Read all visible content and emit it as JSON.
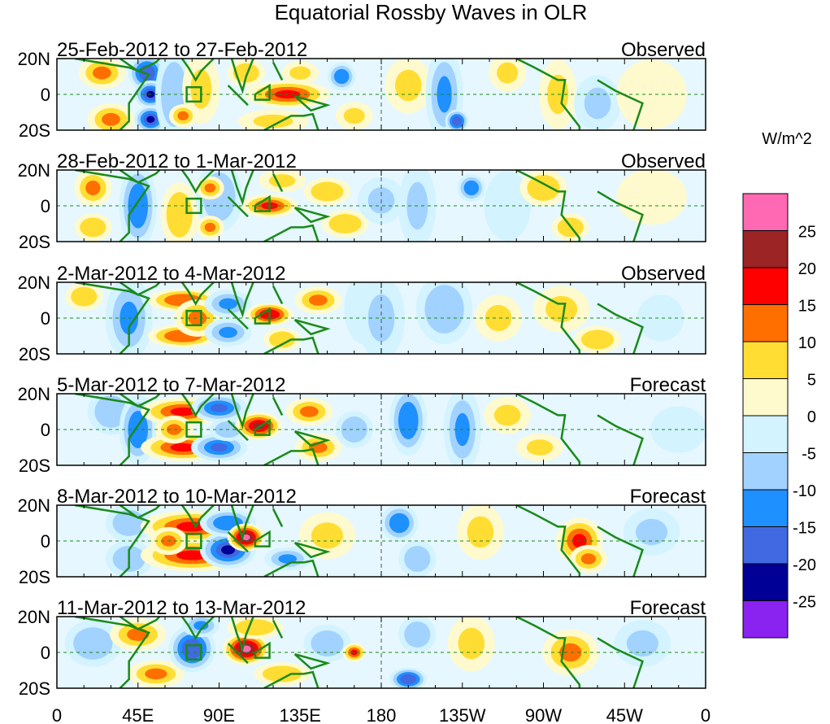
{
  "chart_data": {
    "type": "heatmap",
    "title": "Equatorial Rossby Waves in OLR",
    "units_label": "W/m^2",
    "x_ticks": [
      "0",
      "45E",
      "90E",
      "135E",
      "180",
      "135W",
      "90W",
      "45W",
      "0"
    ],
    "x_tick_values": [
      0,
      45,
      90,
      135,
      180,
      225,
      270,
      315,
      360
    ],
    "y_ticks": [
      "20N",
      "0",
      "20S"
    ],
    "y_tick_values": [
      20,
      0,
      -20
    ],
    "xlim": [
      0,
      360
    ],
    "ylim": [
      -20,
      20
    ],
    "colorbar": {
      "levels": [
        25,
        20,
        15,
        10,
        5,
        0,
        -5,
        -10,
        -15,
        -20,
        -25
      ],
      "level_labels": [
        "25",
        "20",
        "15",
        "10",
        "5",
        "0",
        "-5",
        "-10",
        "-15",
        "-20",
        "-25"
      ],
      "colors": [
        "#FF69B4",
        "#9C2424",
        "#FF0000",
        "#FF6F00",
        "#FFDD33",
        "#FFFACD",
        "#D2F3FF",
        "#A2D2FF",
        "#1E90FF",
        "#4169E1",
        "#000096",
        "#8A22F0"
      ]
    },
    "panels": [
      {
        "date_range": "25-Feb-2012 to 27-Feb-2012",
        "kind": "Observed",
        "features": [
          [
            25,
            12,
            12,
            10,
            7
          ],
          [
            30,
            -14,
            12,
            10,
            7
          ],
          [
            50,
            12,
            -18,
            8,
            8
          ],
          [
            52,
            0,
            -22,
            7,
            6
          ],
          [
            52,
            -14,
            -22,
            7,
            6
          ],
          [
            65,
            0,
            -8,
            8,
            20
          ],
          [
            80,
            3,
            7,
            8,
            15
          ],
          [
            70,
            -12,
            12,
            6,
            5
          ],
          [
            105,
            12,
            8,
            8,
            6
          ],
          [
            128,
            0,
            17,
            18,
            6
          ],
          [
            135,
            12,
            7,
            8,
            5
          ],
          [
            120,
            -15,
            7,
            15,
            5
          ],
          [
            158,
            10,
            -13,
            6,
            6
          ],
          [
            165,
            -12,
            7,
            8,
            6
          ],
          [
            195,
            5,
            5,
            10,
            12
          ],
          [
            215,
            0,
            -12,
            8,
            20
          ],
          [
            222,
            -15,
            -18,
            5,
            5
          ],
          [
            250,
            12,
            7,
            8,
            8
          ],
          [
            278,
            0,
            7,
            8,
            15
          ],
          [
            300,
            -5,
            -7,
            10,
            12
          ],
          [
            330,
            0,
            3,
            15,
            15
          ]
        ]
      },
      {
        "date_range": "28-Feb-2012 to 1-Mar-2012",
        "kind": "Observed",
        "features": [
          [
            20,
            10,
            10,
            8,
            8
          ],
          [
            20,
            -12,
            8,
            8,
            6
          ],
          [
            45,
            0,
            -13,
            8,
            18
          ],
          [
            68,
            -5,
            8,
            8,
            14
          ],
          [
            90,
            5,
            -8,
            10,
            15
          ],
          [
            85,
            10,
            12,
            6,
            5
          ],
          [
            85,
            -12,
            10,
            6,
            5
          ],
          [
            118,
            0,
            16,
            12,
            5
          ],
          [
            125,
            14,
            7,
            10,
            5
          ],
          [
            150,
            8,
            8,
            10,
            6
          ],
          [
            160,
            -10,
            8,
            10,
            6
          ],
          [
            180,
            3,
            -6,
            10,
            10
          ],
          [
            200,
            0,
            -7,
            8,
            18
          ],
          [
            230,
            10,
            -15,
            6,
            6
          ],
          [
            250,
            0,
            -5,
            10,
            15
          ],
          [
            270,
            10,
            8,
            10,
            8
          ],
          [
            285,
            -12,
            8,
            8,
            6
          ],
          [
            330,
            5,
            3,
            15,
            12
          ]
        ]
      },
      {
        "date_range": "2-Mar-2012 to 4-Mar-2012",
        "kind": "Observed",
        "features": [
          [
            15,
            12,
            8,
            8,
            6
          ],
          [
            40,
            0,
            -12,
            10,
            18
          ],
          [
            70,
            10,
            14,
            15,
            5
          ],
          [
            70,
            -10,
            14,
            15,
            5
          ],
          [
            78,
            0,
            10,
            10,
            8
          ],
          [
            95,
            8,
            -12,
            10,
            6
          ],
          [
            95,
            -8,
            -12,
            10,
            6
          ],
          [
            118,
            2,
            18,
            10,
            5
          ],
          [
            125,
            -12,
            8,
            8,
            5
          ],
          [
            145,
            10,
            10,
            10,
            6
          ],
          [
            170,
            5,
            -5,
            8,
            15
          ],
          [
            180,
            0,
            -7,
            10,
            18
          ],
          [
            215,
            5,
            -8,
            12,
            15
          ],
          [
            245,
            0,
            5,
            10,
            10
          ],
          [
            280,
            5,
            7,
            12,
            10
          ],
          [
            300,
            -12,
            8,
            10,
            6
          ],
          [
            335,
            0,
            -5,
            10,
            10
          ]
        ]
      },
      {
        "date_range": "5-Mar-2012 to 7-Mar-2012",
        "kind": "Forecast",
        "features": [
          [
            30,
            10,
            -10,
            10,
            10
          ],
          [
            45,
            0,
            -15,
            8,
            15
          ],
          [
            70,
            10,
            15,
            18,
            6
          ],
          [
            70,
            -10,
            15,
            18,
            6
          ],
          [
            65,
            0,
            10,
            8,
            6
          ],
          [
            90,
            12,
            -17,
            12,
            6
          ],
          [
            90,
            -10,
            -17,
            12,
            6
          ],
          [
            95,
            0,
            -10,
            8,
            5
          ],
          [
            112,
            2,
            22,
            10,
            6
          ],
          [
            140,
            10,
            10,
            10,
            6
          ],
          [
            145,
            -10,
            10,
            10,
            6
          ],
          [
            165,
            0,
            -8,
            8,
            8
          ],
          [
            195,
            5,
            -15,
            8,
            15
          ],
          [
            225,
            0,
            -12,
            8,
            18
          ],
          [
            250,
            8,
            7,
            10,
            8
          ],
          [
            268,
            -10,
            7,
            10,
            6
          ],
          [
            345,
            0,
            -5,
            12,
            10
          ]
        ]
      },
      {
        "date_range": "8-Mar-2012 to 10-Mar-2012",
        "kind": "Forecast",
        "features": [
          [
            40,
            10,
            -10,
            10,
            8
          ],
          [
            40,
            -10,
            -8,
            10,
            8
          ],
          [
            75,
            8,
            15,
            22,
            7
          ],
          [
            75,
            -8,
            15,
            22,
            7
          ],
          [
            62,
            0,
            12,
            8,
            6
          ],
          [
            95,
            -5,
            -22,
            12,
            8
          ],
          [
            95,
            10,
            -15,
            12,
            6
          ],
          [
            105,
            2,
            27,
            8,
            6
          ],
          [
            128,
            -10,
            -12,
            10,
            5
          ],
          [
            150,
            3,
            5,
            12,
            10
          ],
          [
            190,
            10,
            -15,
            8,
            8
          ],
          [
            200,
            -10,
            -10,
            8,
            8
          ],
          [
            235,
            5,
            7,
            10,
            12
          ],
          [
            290,
            0,
            15,
            10,
            10
          ],
          [
            295,
            -10,
            10,
            8,
            6
          ],
          [
            330,
            5,
            -6,
            12,
            10
          ]
        ]
      },
      {
        "date_range": "11-Mar-2012 to 13-Mar-2012",
        "kind": "Forecast",
        "features": [
          [
            20,
            5,
            -10,
            12,
            10
          ],
          [
            45,
            10,
            10,
            12,
            7
          ],
          [
            55,
            -12,
            10,
            12,
            6
          ],
          [
            75,
            2,
            -18,
            10,
            10
          ],
          [
            80,
            15,
            -12,
            8,
            5
          ],
          [
            105,
            2,
            27,
            10,
            7
          ],
          [
            110,
            14,
            8,
            12,
            5
          ],
          [
            125,
            -12,
            8,
            12,
            5
          ],
          [
            150,
            5,
            -10,
            10,
            8
          ],
          [
            165,
            0,
            15,
            5,
            4
          ],
          [
            195,
            -15,
            -18,
            8,
            5
          ],
          [
            200,
            10,
            -10,
            8,
            8
          ],
          [
            230,
            5,
            7,
            10,
            12
          ],
          [
            285,
            0,
            12,
            12,
            10
          ],
          [
            325,
            5,
            -6,
            12,
            10
          ]
        ]
      }
    ]
  }
}
